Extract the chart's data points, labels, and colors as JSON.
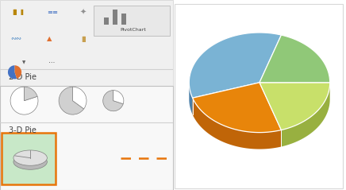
{
  "bg_color": "#ffffff",
  "arrow_color": "#e8750a",
  "selected_box_color": "#c8e8c8",
  "selected_box_border": "#e8750a",
  "pie_slices": [
    0.35,
    0.25,
    0.2,
    0.2
  ],
  "pie_colors": [
    "#7ab3d4",
    "#e8850a",
    "#c8e06a",
    "#90c878"
  ],
  "pie_colors_shadow": [
    "#4a7fa8",
    "#c06508",
    "#98b040",
    "#608848"
  ],
  "pie_startangle": 72,
  "pivot_label": "PivotChart",
  "label_2d": "2-D Pie",
  "label_3d": "3-D Pie"
}
